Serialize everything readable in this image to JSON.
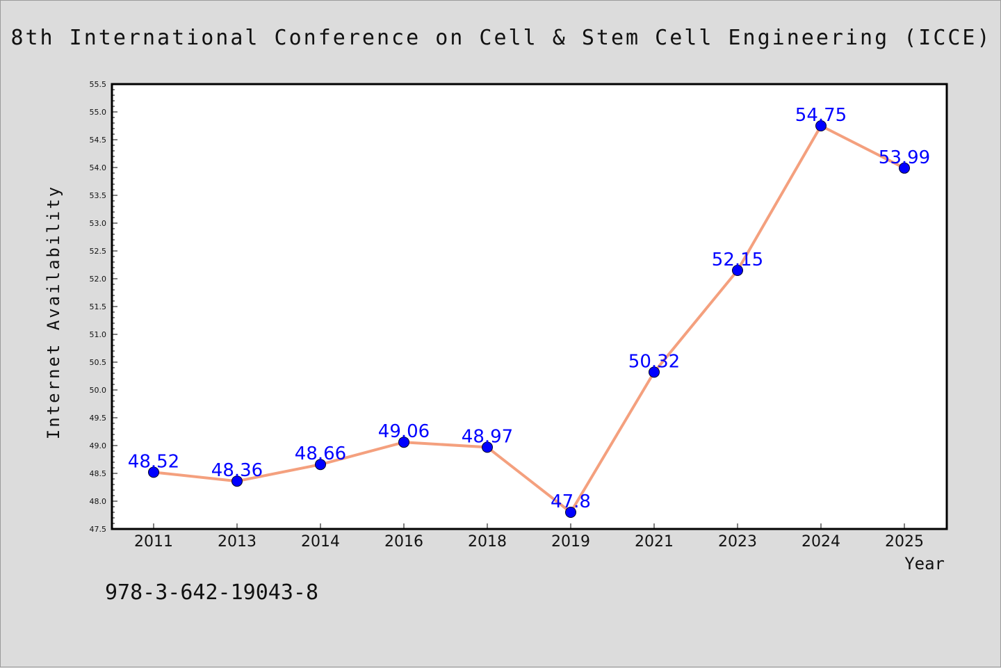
{
  "chart_data": {
    "type": "line",
    "title": "8th International Conference on Cell & Stem Cell Engineering (ICCE)",
    "xlabel": "Year",
    "ylabel": "Internet Availability",
    "categories": [
      "2011",
      "2013",
      "2014",
      "2016",
      "2018",
      "2019",
      "2021",
      "2023",
      "2024",
      "2025"
    ],
    "values": [
      48.52,
      48.36,
      48.66,
      49.06,
      48.97,
      47.8,
      50.32,
      52.15,
      54.75,
      53.99
    ],
    "data_labels": [
      "48.52",
      "48.36",
      "48.66",
      "49.06",
      "48.97",
      "47.8",
      "50.32",
      "52.15",
      "54.75",
      "53.99"
    ],
    "ylim": [
      47.5,
      55.5
    ],
    "yticks": [
      "47.5",
      "48.0",
      "48.5",
      "49.0",
      "49.5",
      "50.0",
      "50.5",
      "51.0",
      "51.5",
      "52.0",
      "52.5",
      "53.0",
      "53.5",
      "54.0",
      "54.5",
      "55.0",
      "55.5"
    ],
    "grid": false,
    "colors": {
      "line": "#f4a07e",
      "marker": "#0000ff",
      "data_label": "#0000ff",
      "frame": "#000000"
    }
  },
  "annotation": {
    "isbn": "978-3-642-19043-8"
  }
}
